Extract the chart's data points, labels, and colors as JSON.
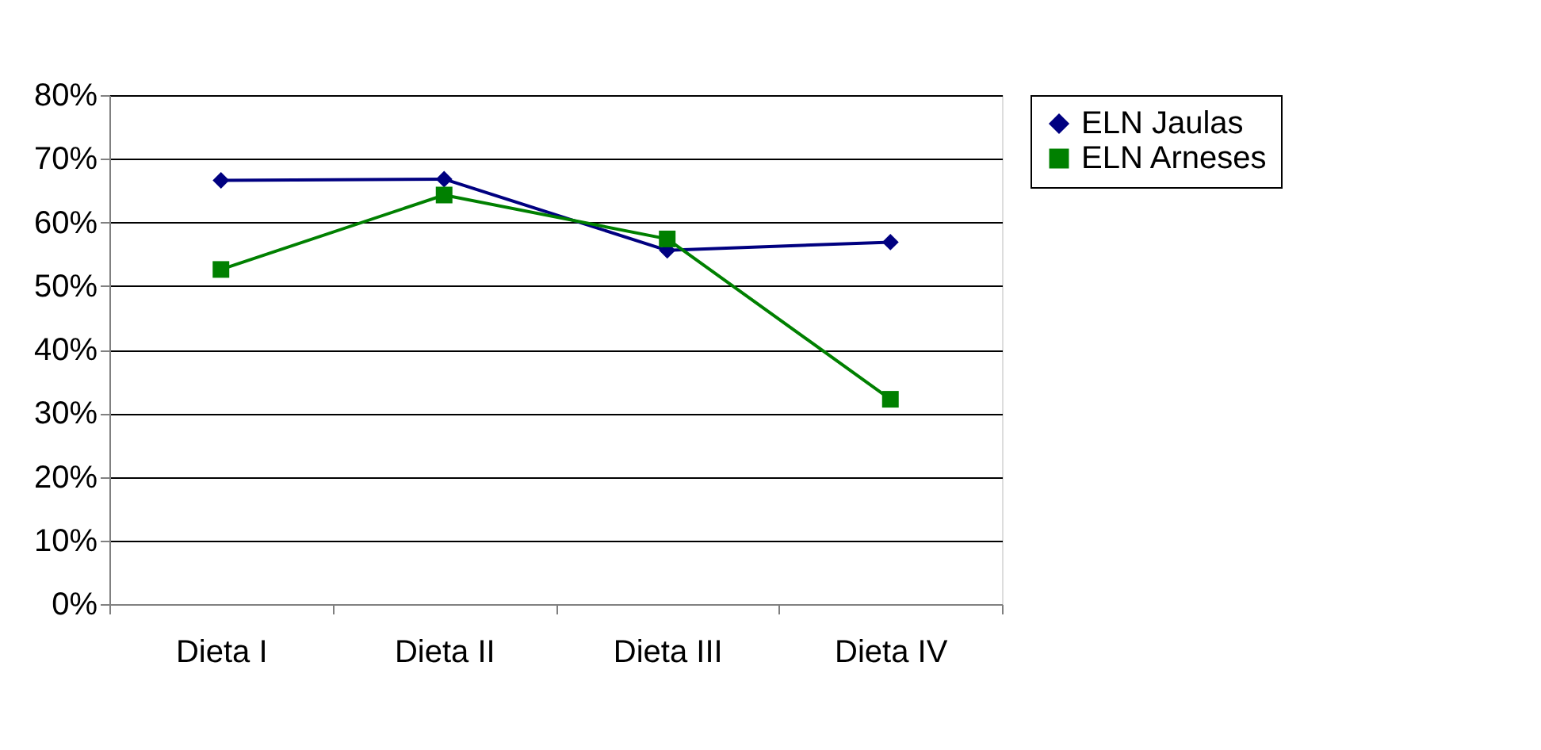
{
  "chart_data": {
    "type": "line",
    "categories": [
      "Dieta I",
      "Dieta II",
      "Dieta III",
      "Dieta IV"
    ],
    "series": [
      {
        "name": "ELN Jaulas",
        "color": "#000080",
        "marker": "diamond",
        "values": [
          66.6,
          66.8,
          55.6,
          56.9
        ]
      },
      {
        "name": "ELN Arneses",
        "color": "#008000",
        "marker": "square",
        "values": [
          52.6,
          64.3,
          57.4,
          32.2
        ]
      }
    ],
    "ylim": [
      0,
      80
    ],
    "yticks": [
      {
        "value": 0,
        "label": "0%"
      },
      {
        "value": 10,
        "label": "10%"
      },
      {
        "value": 20,
        "label": "20%"
      },
      {
        "value": 30,
        "label": "30%"
      },
      {
        "value": 40,
        "label": "40%"
      },
      {
        "value": 50,
        "label": "50%"
      },
      {
        "value": 60,
        "label": "60%"
      },
      {
        "value": 70,
        "label": "70%"
      },
      {
        "value": 80,
        "label": "80%"
      }
    ],
    "grid": "y",
    "legend": "right",
    "line_style": "solid"
  }
}
